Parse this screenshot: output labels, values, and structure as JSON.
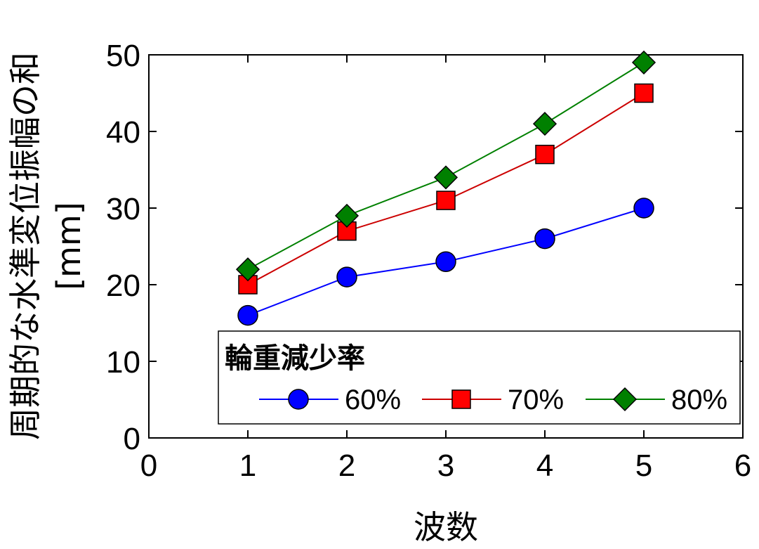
{
  "chart_data": {
    "type": "line",
    "xlabel": "波数",
    "ylabel_main": "周期的な水準変位振幅の和",
    "ylabel_unit": "[mm]",
    "xlim": [
      0,
      6
    ],
    "ylim": [
      0,
      50
    ],
    "xticks": [
      "0",
      "1",
      "2",
      "3",
      "4",
      "5",
      "6"
    ],
    "yticks": [
      "0",
      "10",
      "20",
      "30",
      "40",
      "50"
    ],
    "grid": false,
    "legend": {
      "title": "輪重減少率",
      "placement": "bottom-right"
    },
    "x": [
      1,
      2,
      3,
      4,
      5
    ],
    "series": [
      {
        "name": "60%",
        "values": [
          16,
          21,
          23,
          26,
          30
        ],
        "color": "#0000ff",
        "marker": "circle"
      },
      {
        "name": "70%",
        "values": [
          20,
          27,
          31,
          37,
          45
        ],
        "color": "#ff0000",
        "marker": "square",
        "line_color": "#cc0000"
      },
      {
        "name": "80%",
        "values": [
          22,
          29,
          34,
          41,
          49
        ],
        "color": "#008000",
        "marker": "diamond"
      }
    ]
  }
}
